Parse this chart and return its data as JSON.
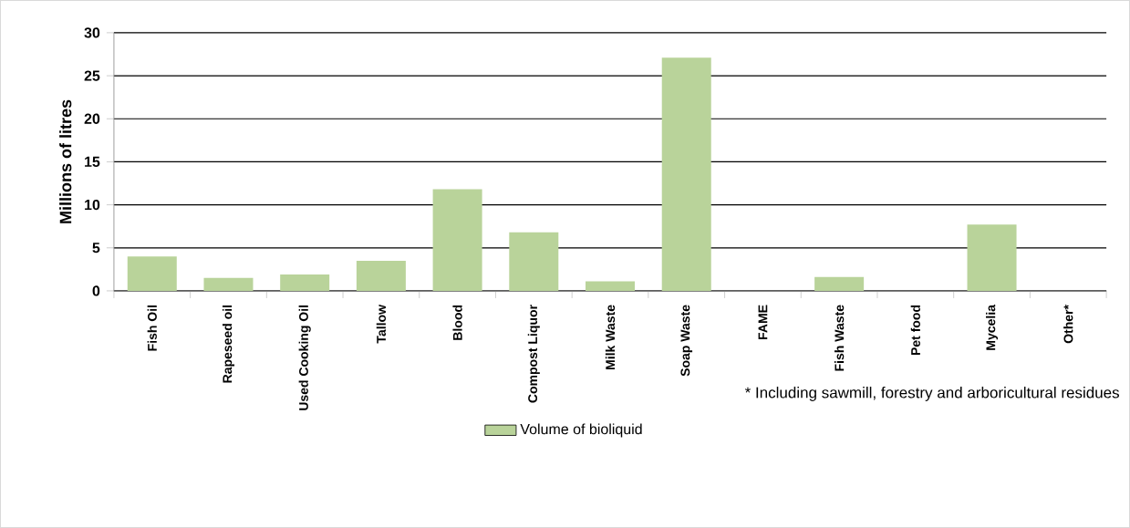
{
  "chart_data": {
    "type": "bar",
    "ylabel": "Millions of litres",
    "categories": [
      "Fish Oil",
      "Rapeseed oil",
      "Used Cooking Oil",
      "Tallow",
      "Blood",
      "Compost Liquor",
      "Milk Waste",
      "Soap Waste",
      "FAME",
      "Fish Waste",
      "Pet food",
      "Mycelia",
      "Other*"
    ],
    "series": [
      {
        "name": "Volume of bioliquid",
        "color": "#b9d39a",
        "values": [
          4.0,
          1.5,
          1.9,
          3.5,
          11.8,
          6.8,
          1.1,
          27.1,
          0,
          1.6,
          0,
          7.7,
          0
        ]
      }
    ],
    "ylim": [
      0,
      30
    ],
    "yticks": [
      0,
      5,
      10,
      15,
      20,
      25,
      30
    ],
    "grid": "y",
    "legend": "bottom",
    "annotations": [
      "* Including sawmill, forestry and arboricultural residues"
    ]
  }
}
